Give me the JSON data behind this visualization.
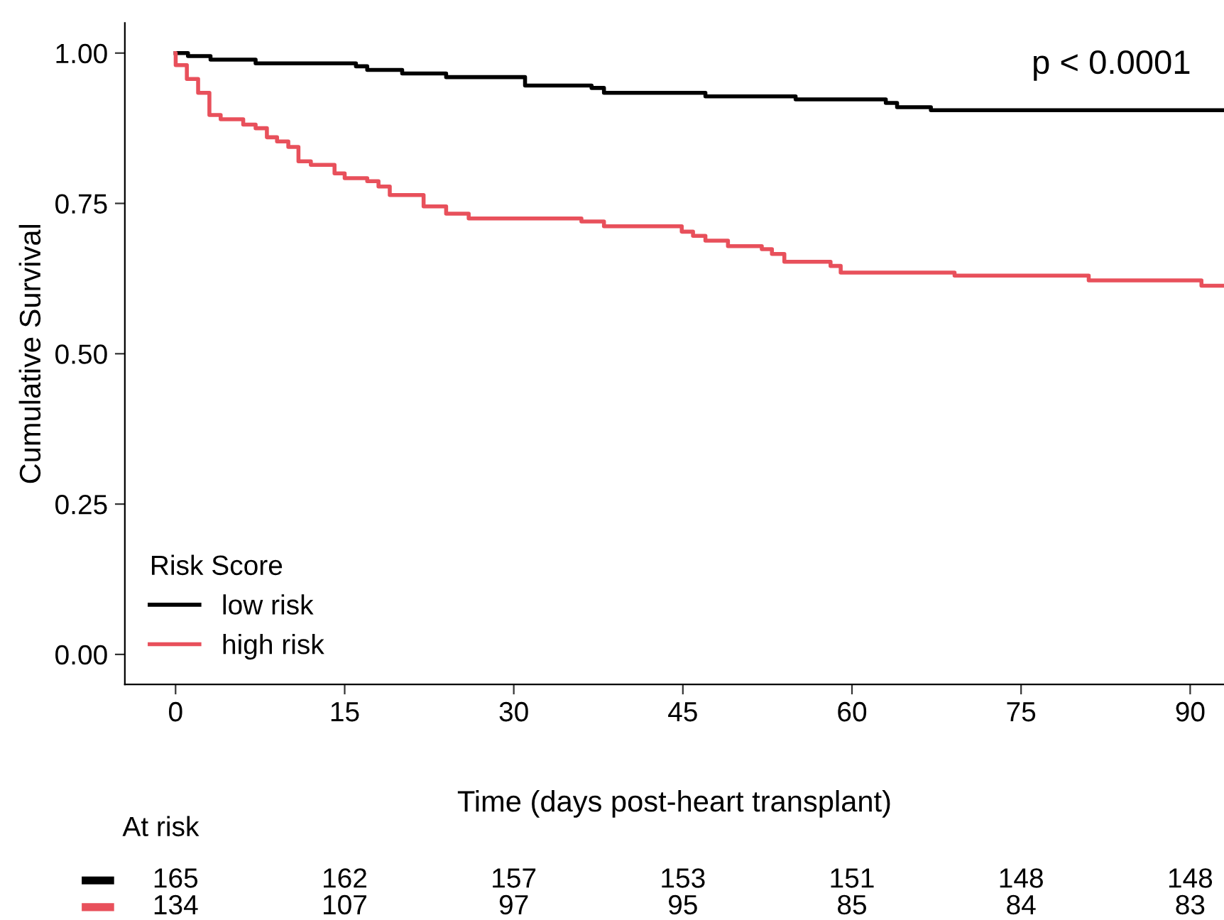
{
  "chart_data": {
    "type": "step",
    "xlabel": "Time (days post-heart transplant)",
    "ylabel": "Cumulative Survival",
    "legend_title": "Risk Score",
    "legend": "bottom left",
    "grid": false,
    "line_style": "solid",
    "xlim": [
      -4.5,
      93
    ],
    "ylim": [
      -0.05,
      1.05
    ],
    "xticks": [
      0,
      15,
      30,
      45,
      60,
      75,
      90
    ],
    "yticks": [
      {
        "value": 0,
        "label": "0.00"
      },
      {
        "value": 0.25,
        "label": "0.25"
      },
      {
        "value": 0.5,
        "label": "0.50"
      },
      {
        "value": 0.75,
        "label": "0.75"
      },
      {
        "value": 1,
        "label": "1.00"
      }
    ],
    "series": [
      {
        "name": "low risk",
        "color": "#000000",
        "x": [
          0,
          1.1,
          3.1,
          7.1,
          16,
          17,
          20.1,
          24,
          31,
          36.9,
          38,
          47,
          55,
          63,
          64,
          67,
          93
        ],
        "values": [
          1.0,
          0.995,
          0.989,
          0.983,
          0.978,
          0.972,
          0.966,
          0.96,
          0.946,
          0.942,
          0.934,
          0.928,
          0.923,
          0.917,
          0.91,
          0.905,
          0.905
        ]
      },
      {
        "name": "high risk",
        "color": "#e8505b",
        "x": [
          0,
          0.01,
          1.0,
          2.0,
          3.0,
          4.0,
          6.0,
          7.1,
          8.1,
          9.0,
          10.0,
          10.9,
          12.0,
          14.1,
          15.0,
          17.0,
          18.0,
          19.0,
          22.0,
          24.0,
          26.0,
          36.0,
          38.0,
          44.9,
          45.9,
          47.0,
          49.0,
          52.0,
          52.9,
          54.0,
          58.1,
          59.0,
          69.1,
          81.0,
          91.0,
          93
        ],
        "values": [
          1.0,
          0.98,
          0.957,
          0.934,
          0.897,
          0.89,
          0.881,
          0.875,
          0.86,
          0.853,
          0.844,
          0.82,
          0.814,
          0.8,
          0.792,
          0.787,
          0.778,
          0.764,
          0.745,
          0.733,
          0.725,
          0.72,
          0.712,
          0.703,
          0.696,
          0.688,
          0.679,
          0.674,
          0.666,
          0.653,
          0.646,
          0.635,
          0.63,
          0.622,
          0.613,
          0.613
        ]
      }
    ],
    "annotations": [
      "p < 0.0001",
      "At risk",
      "165",
      "162",
      "157",
      "153",
      "151",
      "148",
      "148",
      "134",
      "107",
      "97",
      "95",
      "85",
      "84",
      "83"
    ]
  }
}
